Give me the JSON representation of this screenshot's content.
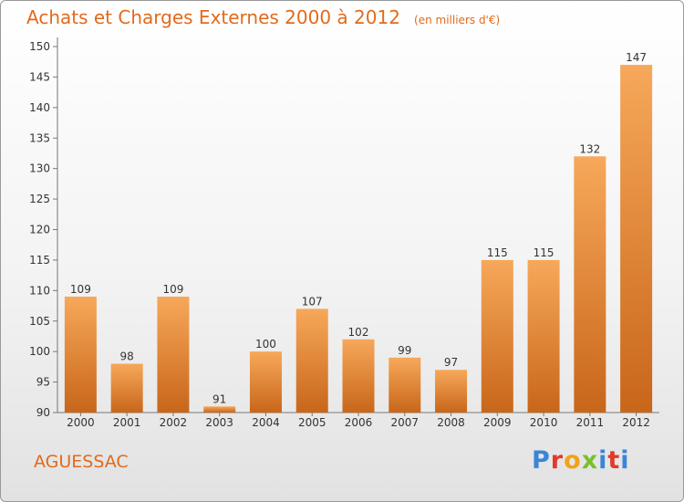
{
  "title": "Achats et Charges Externes 2000 à 2012",
  "unit": "(en milliers d'€)",
  "town": "AGUESSAC",
  "logo": "Proxiti",
  "colors": {
    "bar_light": "#f7a85a",
    "bar_dark": "#c8661a",
    "title": "#e26a1c"
  },
  "chart_data": {
    "type": "bar",
    "title": "Achats et Charges Externes 2000 à 2012",
    "subtitle": "(en milliers d'€)",
    "categories": [
      "2000",
      "2001",
      "2002",
      "2003",
      "2004",
      "2005",
      "2006",
      "2007",
      "2008",
      "2009",
      "2010",
      "2011",
      "2012"
    ],
    "values": [
      109,
      98,
      109,
      91,
      100,
      107,
      102,
      99,
      97,
      115,
      115,
      132,
      147
    ],
    "ylim": [
      90,
      150
    ],
    "yticks": [
      90,
      95,
      100,
      105,
      110,
      115,
      120,
      125,
      130,
      135,
      140,
      145,
      150
    ],
    "grid": false,
    "data_labels": true
  }
}
